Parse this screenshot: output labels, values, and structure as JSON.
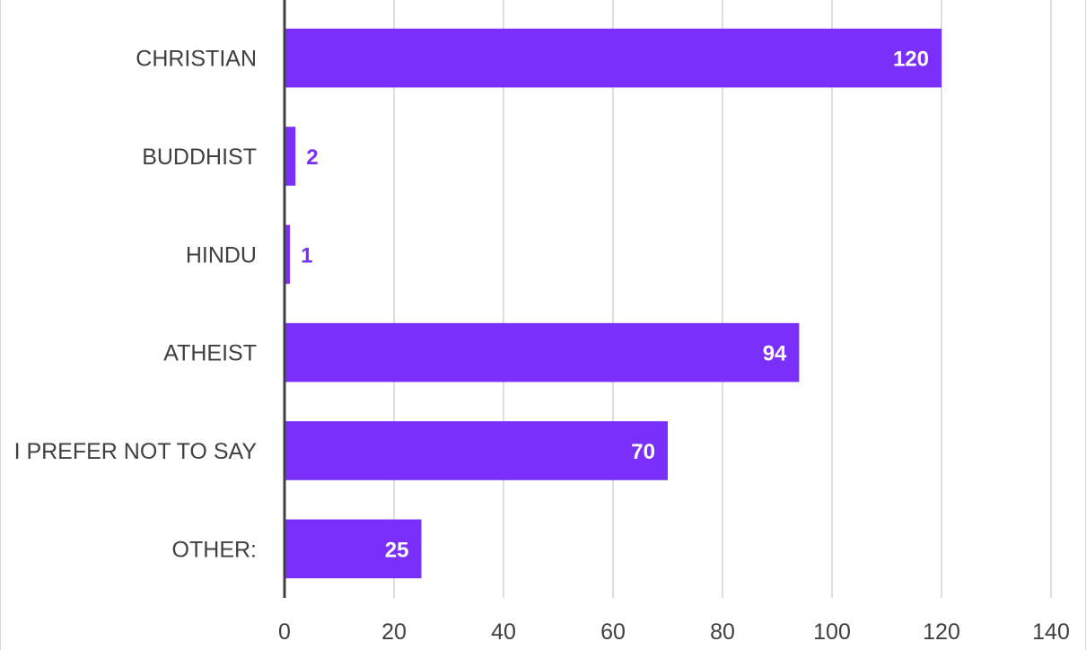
{
  "chart_data": {
    "type": "bar",
    "orientation": "horizontal",
    "title": "",
    "xlabel": "",
    "ylabel": "",
    "categories": [
      "CHRISTIAN",
      "BUDDHIST",
      "HINDU",
      "ATHEIST",
      "I PREFER NOT TO SAY",
      "OTHER:"
    ],
    "values": [
      120,
      2,
      1,
      94,
      70,
      25
    ],
    "xlim": [
      0,
      140
    ],
    "xticks": [
      0,
      20,
      40,
      60,
      80,
      100,
      120,
      140
    ],
    "grid": true,
    "legend": "none",
    "colors": {
      "bar": "#7b2ffa",
      "label_inside": "#ffffff",
      "label_outside": "#7b2ffa",
      "axis": "#404040",
      "grid": "#d4d4d4",
      "text": "#404040"
    }
  }
}
